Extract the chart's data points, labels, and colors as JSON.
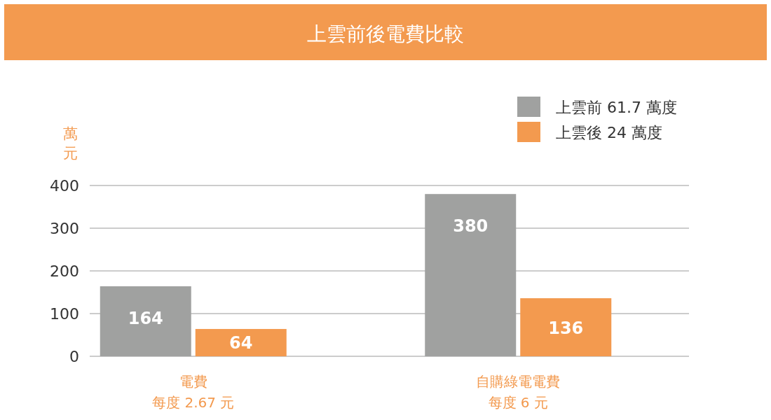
{
  "chart_data": {
    "type": "bar",
    "title": "上雲前後電費比較",
    "ylabel": "萬元",
    "categories": [
      "電費",
      "自購綠電電費"
    ],
    "annotations": [
      "每度 2.67 元",
      "每度 6 元"
    ],
    "series": [
      {
        "name": "上雲前 61.7 萬度",
        "color": "#a0a1a0",
        "values": [
          164,
          380
        ]
      },
      {
        "name": "上雲後 24 萬度",
        "color": "#f39a4f",
        "values": [
          64,
          136
        ]
      }
    ],
    "ylim": [
      0,
      400
    ],
    "yticks": [
      0,
      100,
      200,
      300,
      400
    ],
    "grid": "y",
    "legend": "top right",
    "data_labels": true
  }
}
